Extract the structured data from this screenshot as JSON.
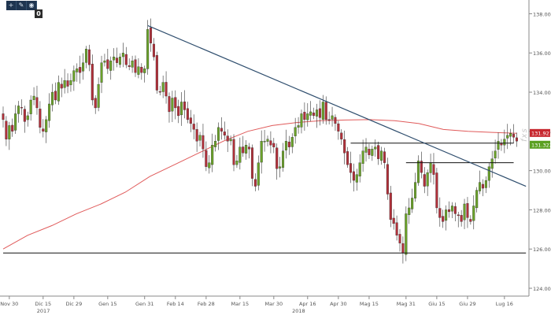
{
  "toolbar": {
    "buttons": [
      {
        "icon": "plus-icon",
        "glyph": "+"
      },
      {
        "icon": "pencil-icon",
        "glyph": "✎"
      },
      {
        "icon": "eye-icon",
        "glyph": "◉"
      }
    ],
    "count": "0"
  },
  "watermark": "fxs",
  "colors": {
    "bull": "#6aa12a",
    "bear": "#b0303a",
    "sma": "#e05a5a",
    "trendline": "#2f4e6e",
    "price_label_upper": "#c7282f",
    "price_label_lower": "#5aa021",
    "axis_text": "#555555",
    "grid": "#e6e6e6"
  },
  "chart_data": {
    "type": "candlestick",
    "title": "",
    "y_ticks": [
      "124.0000",
      "126.0000",
      "128.0000",
      "130.0000",
      "132.0000",
      "134.0000",
      "136.0000",
      "138.0000"
    ],
    "ylim": [
      123.6,
      138.5
    ],
    "x_ticks": [
      {
        "label": "Nov 30",
        "index": 2
      },
      {
        "label": "Dic 15",
        "index": 13
      },
      {
        "label": "Dic 29",
        "index": 23
      },
      {
        "label": "Gen 15",
        "index": 34
      },
      {
        "label": "Gen 31",
        "index": 46
      },
      {
        "label": "Feb 14",
        "index": 56
      },
      {
        "label": "Feb 28",
        "index": 66
      },
      {
        "label": "Mar 15",
        "index": 77
      },
      {
        "label": "Mar 30",
        "index": 88
      },
      {
        "label": "Apr 16",
        "index": 99
      },
      {
        "label": "Apr 30",
        "index": 109
      },
      {
        "label": "Mag 15",
        "index": 119
      },
      {
        "label": "Mag 31",
        "index": 131
      },
      {
        "label": "Giu 15",
        "index": 141
      },
      {
        "label": "Giu 29",
        "index": 151
      },
      {
        "label": "Lug 16",
        "index": 163
      }
    ],
    "year_labels": [
      {
        "label": "2017",
        "index": 13
      },
      {
        "label": "2018",
        "index": 96
      }
    ],
    "price_labels": [
      {
        "label": "131.9216",
        "value": 131.92,
        "color": "upper"
      },
      {
        "label": "131.3229",
        "value": 131.32,
        "color": "lower"
      }
    ],
    "close_path": [
      132.6,
      131.6,
      132.3,
      132.0,
      132.9,
      133.3,
      133.2,
      132.5,
      132.8,
      133.6,
      133.8,
      133.2,
      132.2,
      132.0,
      132.6,
      133.4,
      134.0,
      133.6,
      134.5,
      134.2,
      134.6,
      134.3,
      134.6,
      135.1,
      135.2,
      135.0,
      135.5,
      136.2,
      135.4,
      133.6,
      133.2,
      134.4,
      135.5,
      135.6,
      135.2,
      135.6,
      135.8,
      135.5,
      135.8,
      136.0,
      135.4,
      135.3,
      135.6,
      135.0,
      135.3,
      135.0,
      135.2,
      137.2,
      136.5,
      135.8,
      134.1,
      134.0,
      134.5,
      133.8,
      133.0,
      133.7,
      133.2,
      132.8,
      133.5,
      133.1,
      132.6,
      132.4,
      132.1,
      131.5,
      131.8,
      131.1,
      130.2,
      130.4,
      131.3,
      131.5,
      132.2,
      132.0,
      131.8,
      131.5,
      131.6,
      130.3,
      130.5,
      131.2,
      130.9,
      131.3,
      131.1,
      129.6,
      129.2,
      130.4,
      131.5,
      131.5,
      131.6,
      131.3,
      131.2,
      130.1,
      130.2,
      131.0,
      131.5,
      131.2,
      131.7,
      132.2,
      132.3,
      132.9,
      132.6,
      132.9,
      133.0,
      132.8,
      133.1,
      132.7,
      133.5,
      132.6,
      132.6,
      132.8,
      132.4,
      132.0,
      131.6,
      130.9,
      130.3,
      129.9,
      129.5,
      129.8,
      130.4,
      131.0,
      131.2,
      130.8,
      131.1,
      131.2,
      130.6,
      131.0,
      130.4,
      128.8,
      127.5,
      127.3,
      126.7,
      126.3,
      125.8,
      127.8,
      128.1,
      128.6,
      129.4,
      130.5,
      129.9,
      129.2,
      129.9,
      130.4,
      129.8,
      128.1,
      127.6,
      127.4,
      128.0,
      127.9,
      128.2,
      127.8,
      127.7,
      127.4,
      128.3,
      127.6,
      127.4,
      128.2,
      129.0,
      129.4,
      129.1,
      129.5,
      130.2,
      130.6,
      131.0,
      131.5,
      131.3,
      131.6,
      131.8,
      131.9,
      131.7,
      131.5
    ],
    "sma_path": [
      126.0,
      126.7,
      127.2,
      127.8,
      128.3,
      128.9,
      129.7,
      130.3,
      130.9,
      131.5,
      132.0,
      132.3,
      132.45,
      132.55,
      132.58,
      132.6,
      132.55,
      132.4,
      132.1,
      132.0,
      131.95,
      131.9
    ],
    "trendline": [
      {
        "index": 47,
        "value": 137.4
      },
      {
        "index": 170,
        "value": 129.2
      }
    ],
    "horizontal_lines": [
      {
        "value": 125.8,
        "from_index": 0,
        "to_index": 170
      },
      {
        "value": 131.4,
        "from_index": 113,
        "to_index": 166
      },
      {
        "value": 130.4,
        "from_index": 131,
        "to_index": 166
      }
    ]
  }
}
